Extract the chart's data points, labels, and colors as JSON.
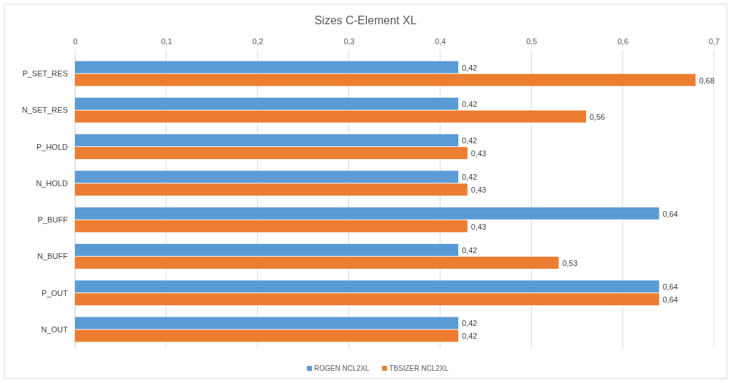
{
  "chart_data": {
    "type": "bar",
    "orientation": "horizontal",
    "title": "Sizes C-Element XL",
    "categories": [
      "P_SET_RES",
      "N_SET_RES",
      "P_HOLD",
      "N_HOLD",
      "P_BUFF",
      "N_BUFF",
      "P_OUT",
      "N_OUT"
    ],
    "series": [
      {
        "name": "ROGEN NCL2XL",
        "color": "#5b9bd5",
        "values": [
          0.42,
          0.42,
          0.42,
          0.42,
          0.64,
          0.42,
          0.64,
          0.42
        ],
        "value_labels": [
          "0,42",
          "0,42",
          "0,42",
          "0,42",
          "0,64",
          "0,42",
          "0,64",
          "0,42"
        ]
      },
      {
        "name": "TBSIZER NCL2XL",
        "color": "#ed7d31",
        "values": [
          0.68,
          0.56,
          0.43,
          0.43,
          0.43,
          0.53,
          0.64,
          0.42
        ],
        "value_labels": [
          "0,68",
          "0,56",
          "0,43",
          "0,43",
          "0,43",
          "0,53",
          "0,64",
          "0,42"
        ]
      }
    ],
    "xlim": [
      0,
      0.7
    ],
    "xticks": [
      0,
      {
        "value": 0.1,
        "label": "0,1"
      },
      {
        "value": 0.2,
        "label": "0,2"
      },
      {
        "value": 0.3,
        "label": "0,3"
      },
      {
        "value": 0.4,
        "label": "0,4"
      },
      {
        "value": 0.5,
        "label": "0,5"
      },
      {
        "value": 0.6,
        "label": "0,6"
      },
      {
        "value": 0.7,
        "label": "0,7"
      }
    ],
    "grid": "x",
    "legend": "bottom"
  }
}
